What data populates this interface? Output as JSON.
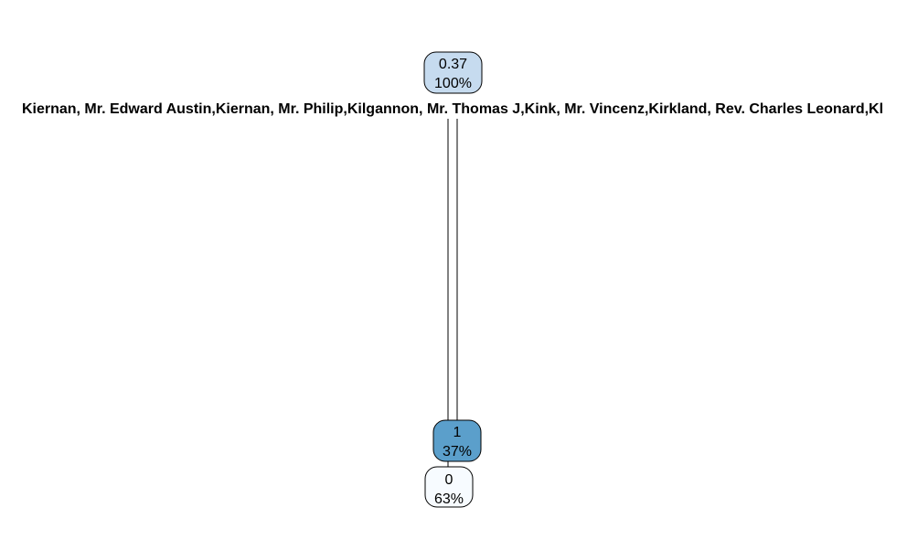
{
  "tree": {
    "root": {
      "value": "0.37",
      "percent": "100%",
      "fill": "#c6dbef"
    },
    "split_label": "Kiernan, Mr. Edward Austin,Kiernan, Mr. Philip,Kilgannon, Mr. Thomas J,Kink, Mr. Vincenz,Kirkland, Rev. Charles Leonard,Kl",
    "right_leaf": {
      "value": "1",
      "percent": "37%",
      "fill": "#5b9fcb"
    },
    "left_leaf": {
      "value": "0",
      "percent": "63%",
      "fill": "#f7fbff"
    },
    "colors": {
      "line": "#000000",
      "text": "#000000"
    }
  }
}
